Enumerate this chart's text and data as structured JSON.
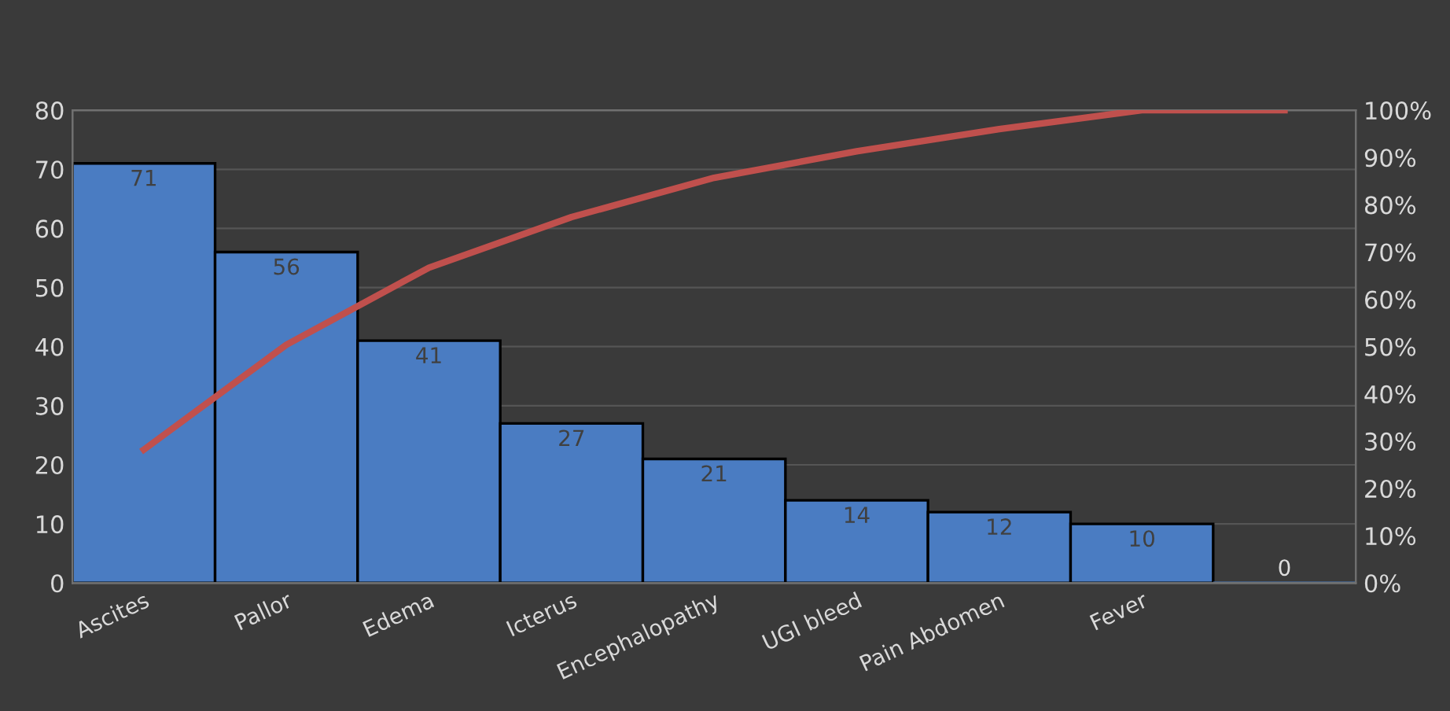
{
  "chart_data": {
    "type": "bar",
    "categories": [
      "Ascites",
      "Pallor",
      "Edema",
      "Icterus",
      "Encephalopathy",
      "UGI bleed",
      "Pain Abdomen",
      "Fever",
      null
    ],
    "series": [
      {
        "color": "#4a7cc2",
        "values": [
          71,
          56,
          41,
          27,
          21,
          14,
          12,
          10,
          0
        ],
        "value_labels": [
          "71",
          "56",
          "41",
          "27",
          "21",
          "14",
          "12",
          "10",
          "0"
        ]
      },
      {
        "type": "line",
        "axis": "y2",
        "color": "#c0504d",
        "values": [
          28.2,
          50.4,
          66.7,
          77.4,
          85.7,
          91.3,
          96.0,
          100,
          100
        ]
      }
    ],
    "ylim": [
      0,
      80
    ],
    "yticks": [
      0,
      10,
      20,
      30,
      40,
      50,
      60,
      70,
      80
    ],
    "y2lim": [
      0,
      100
    ],
    "y2ticks": [
      {
        "value": 0,
        "label": "0%"
      },
      {
        "value": 10,
        "label": "10%"
      },
      {
        "value": 20,
        "label": "20%"
      },
      {
        "value": 30,
        "label": "30%"
      },
      {
        "value": 40,
        "label": "40%"
      },
      {
        "value": 50,
        "label": "50%"
      },
      {
        "value": 60,
        "label": "60%"
      },
      {
        "value": 70,
        "label": "70%"
      },
      {
        "value": 80,
        "label": "80%"
      },
      {
        "value": 90,
        "label": "90%"
      },
      {
        "value": 100,
        "label": "100%"
      }
    ],
    "grid": "y",
    "marker": "none",
    "line_style": "solid"
  }
}
